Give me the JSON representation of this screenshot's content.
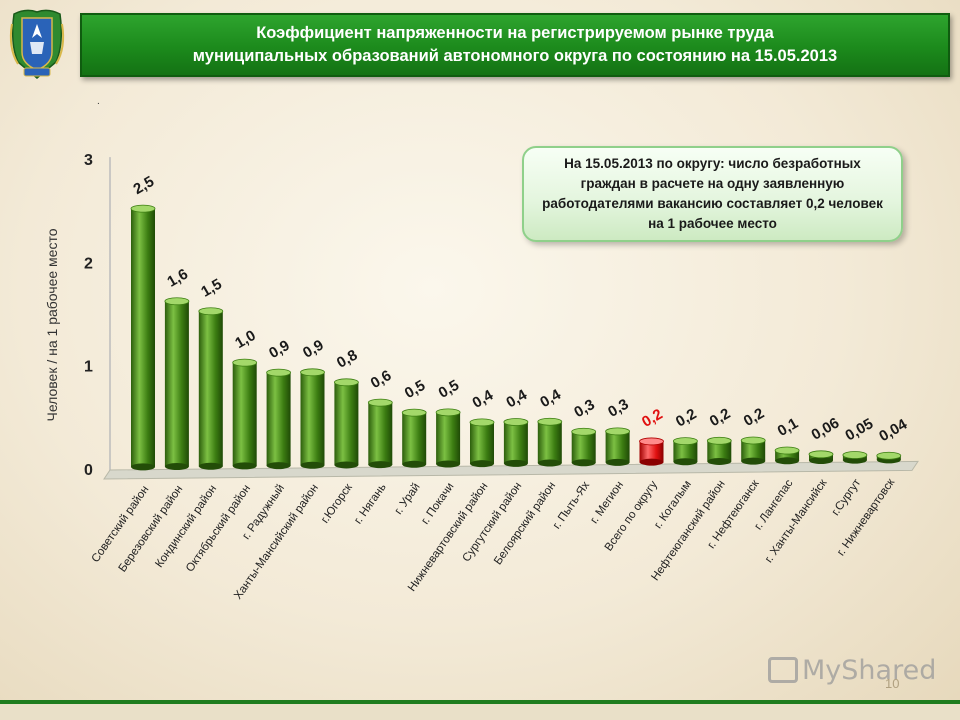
{
  "header": {
    "title_line1": "Коэффициент напряженности на регистрируемом рынке труда",
    "title_line2": "муниципальных образований автономного округа по состоянию на 15.05.2013"
  },
  "marker": ".",
  "info_box": {
    "text": "На 15.05.2013 по округу: число безработных граждан в расчете на одну заявленную работодателями вакансию составляет 0,2 человек на 1 рабочее место"
  },
  "colors": {
    "bar": "#3c7d12",
    "bar_light": "#7cc043",
    "highlight": "#e01010",
    "highlight_light": "#ff6a6a",
    "title_bg": "#1c8a1c"
  },
  "chart_data": {
    "type": "bar",
    "ylabel": "Человек / на 1 рабочее место",
    "ylim": [
      0,
      3
    ],
    "yticks": [
      "0",
      "1",
      "2",
      "3"
    ],
    "categories": [
      "Советский район",
      "Березовский район",
      "Кондинский район",
      "Октябрьский район",
      "г. Радужный",
      "Ханты-Мансийский район",
      "г.Югорск",
      "г. Нягань",
      "г. Урай",
      "г. Покачи",
      "Нижневартовский район",
      "Сургутский район",
      "Белоярский район",
      "г. Пыть-Ях",
      "г. Мегион",
      "Всего по округу",
      "г. Когалым",
      "Нефтеюганский район",
      "г. Нефтеюганск",
      "г. Лангепас",
      "г. Ханты-Мансийск",
      "г.Сургут",
      "г. Нижневартовск"
    ],
    "values": [
      2.5,
      1.6,
      1.5,
      1.0,
      0.9,
      0.9,
      0.8,
      0.6,
      0.5,
      0.5,
      0.4,
      0.4,
      0.4,
      0.3,
      0.3,
      0.2,
      0.2,
      0.2,
      0.2,
      0.1,
      0.06,
      0.05,
      0.04
    ],
    "labels": [
      "2,5",
      "1,6",
      "1,5",
      "1,0",
      "0,9",
      "0,9",
      "0,8",
      "0,6",
      "0,5",
      "0,5",
      "0,4",
      "0,4",
      "0,4",
      "0,3",
      "0,3",
      "0,2",
      "0,2",
      "0,2",
      "0,2",
      "0,1",
      "0,06",
      "0,05",
      "0,04"
    ],
    "highlight_category": "Всего по округу"
  },
  "footer": {
    "watermark": "MyShared",
    "page_number": "10"
  }
}
